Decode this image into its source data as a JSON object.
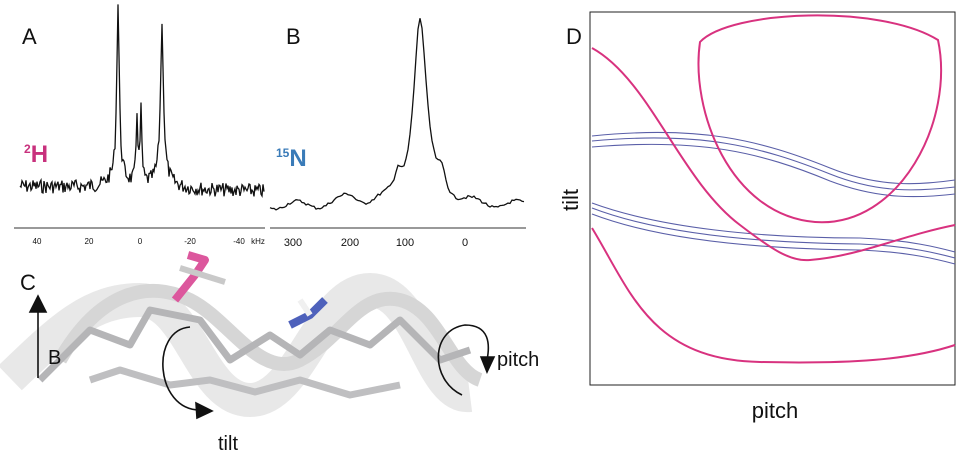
{
  "panels": {
    "A": {
      "label": "A",
      "nucleus": {
        "mass": "2",
        "element": "H"
      },
      "ticks": [
        "40",
        "20",
        "0",
        "-20",
        "-40"
      ],
      "unit": "kHz"
    },
    "B": {
      "label": "B",
      "nucleus": {
        "mass": "15",
        "element": "N"
      },
      "ticks": [
        "300",
        "200",
        "100",
        "0"
      ]
    },
    "C": {
      "label": "C",
      "field": "B",
      "pitch": "pitch",
      "tilt": "tilt"
    },
    "D": {
      "label": "D",
      "ylabel": "tilt",
      "xlabel": "pitch"
    }
  }
}
